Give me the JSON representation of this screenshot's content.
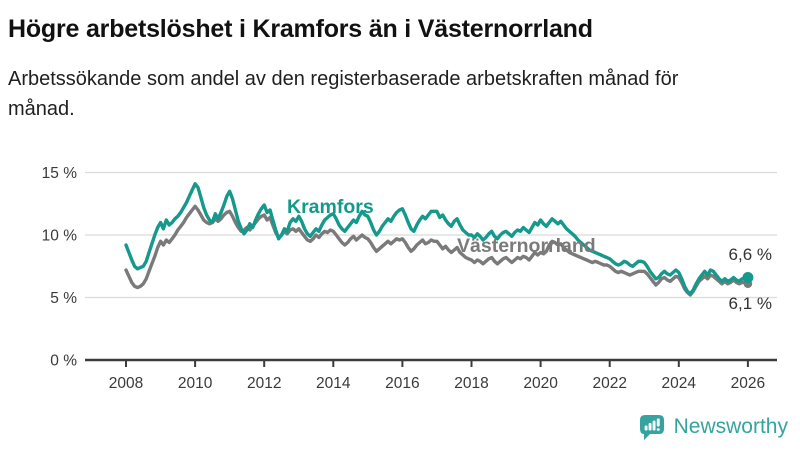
{
  "header": {
    "title": "Högre arbetslöshet i Kramfors än i Västernorrland",
    "subtitle": "Arbetssökande som andel av den registerbaserade arbetskraften månad för månad."
  },
  "footer": {
    "brand": "Newsworthy"
  },
  "colors": {
    "kramfors": "#14998C",
    "vasternorrland": "#7A7A7A",
    "annotation_text": "#333333",
    "axis": "#3C3C3C",
    "tick_text": "#3A3A3A",
    "grid": "#DBDBDB",
    "logo": "#35A4A0"
  },
  "chart_data": {
    "type": "line",
    "title": "Högre arbetslöshet i Kramfors än i Västernorrland",
    "subtitle": "Arbetssökande som andel av den registerbaserade arbetskraften månad för månad.",
    "xlabel": "",
    "ylabel": "",
    "unit": "%",
    "frequency": "monthly",
    "x_start": "2008-01",
    "x_end": "2026-01",
    "ylim": [
      0,
      15
    ],
    "grid": "horizontal",
    "legend_position": "inline-labels",
    "x_ticks": [
      "2008",
      "2010",
      "2012",
      "2014",
      "2016",
      "2018",
      "2020",
      "2022",
      "2024",
      "2026"
    ],
    "y_ticks": [
      {
        "value": 0,
        "label": "0 %"
      },
      {
        "value": 5,
        "label": "5 %"
      },
      {
        "value": 10,
        "label": "10 %"
      },
      {
        "value": 15,
        "label": "15 %"
      }
    ],
    "series": [
      {
        "name": "Kramfors",
        "color": "#14998C",
        "end_label": "6,6 %",
        "end_value": 6.6,
        "values": [
          9.2,
          8.6,
          8.0,
          7.5,
          7.3,
          7.4,
          7.5,
          7.9,
          8.6,
          9.3,
          10.0,
          10.6,
          11.0,
          10.5,
          11.2,
          10.8,
          11.0,
          11.3,
          11.5,
          11.8,
          12.2,
          12.6,
          13.1,
          13.6,
          14.1,
          13.8,
          13.0,
          12.2,
          11.6,
          11.2,
          11.0,
          11.7,
          11.3,
          11.8,
          12.4,
          13.1,
          13.5,
          12.9,
          12.0,
          11.1,
          10.5,
          10.1,
          10.4,
          10.9,
          10.6,
          11.2,
          11.7,
          12.1,
          12.4,
          11.8,
          12.0,
          11.2,
          10.4,
          9.7,
          10.0,
          10.5,
          10.3,
          11.0,
          11.3,
          11.1,
          11.5,
          11.1,
          10.5,
          10.1,
          9.9,
          10.2,
          10.5,
          10.3,
          10.8,
          11.2,
          11.4,
          11.6,
          11.7,
          11.3,
          10.8,
          10.5,
          10.3,
          10.6,
          10.9,
          11.2,
          11.0,
          11.5,
          11.9,
          11.6,
          11.5,
          11.0,
          10.4,
          10.0,
          10.3,
          10.7,
          11.0,
          11.3,
          11.1,
          11.5,
          11.8,
          12.0,
          12.1,
          11.6,
          11.0,
          10.5,
          10.3,
          10.8,
          11.2,
          11.5,
          11.3,
          11.6,
          11.9,
          11.9,
          11.9,
          11.4,
          11.6,
          11.2,
          10.9,
          10.7,
          11.1,
          11.3,
          10.8,
          10.4,
          10.2,
          10.0,
          10.0,
          9.8,
          10.1,
          9.9,
          9.6,
          9.8,
          10.1,
          10.3,
          9.9,
          9.7,
          10.0,
          10.2,
          10.3,
          10.1,
          9.9,
          10.2,
          10.4,
          10.3,
          10.6,
          10.4,
          10.2,
          10.6,
          11.0,
          10.8,
          11.2,
          10.9,
          10.7,
          11.0,
          11.3,
          11.1,
          10.9,
          11.1,
          10.8,
          10.5,
          10.3,
          10.1,
          9.9,
          9.6,
          9.4,
          9.2,
          9.0,
          8.8,
          8.7,
          8.6,
          8.5,
          8.4,
          8.3,
          8.2,
          8.1,
          7.9,
          7.7,
          7.6,
          7.7,
          7.9,
          7.8,
          7.6,
          7.5,
          7.7,
          7.9,
          7.9,
          7.8,
          7.5,
          7.1,
          6.8,
          6.5,
          6.6,
          6.9,
          7.1,
          6.9,
          6.8,
          7.0,
          7.2,
          7.0,
          6.5,
          5.9,
          5.5,
          5.3,
          5.6,
          6.1,
          6.5,
          6.8,
          7.1,
          6.8,
          7.2,
          7.1,
          6.8,
          6.5,
          6.3,
          6.5,
          6.3,
          6.4,
          6.6,
          6.4,
          6.3,
          6.5,
          6.5,
          6.6
        ]
      },
      {
        "name": "Västernorrland",
        "color": "#7A7A7A",
        "end_label": "6,1 %",
        "end_value": 6.1,
        "values": [
          7.2,
          6.7,
          6.2,
          5.9,
          5.8,
          5.9,
          6.1,
          6.5,
          7.1,
          7.7,
          8.3,
          9.0,
          9.5,
          9.2,
          9.6,
          9.4,
          9.7,
          10.0,
          10.4,
          10.7,
          11.0,
          11.4,
          11.7,
          12.0,
          12.3,
          12.0,
          11.6,
          11.2,
          11.0,
          10.9,
          11.0,
          11.3,
          11.1,
          11.3,
          11.6,
          11.8,
          11.9,
          11.5,
          11.0,
          10.6,
          10.3,
          10.4,
          10.6,
          10.4,
          10.7,
          11.0,
          11.3,
          11.5,
          11.6,
          11.2,
          11.4,
          10.8,
          10.2,
          9.8,
          10.0,
          10.3,
          10.1,
          10.4,
          10.5,
          10.3,
          10.5,
          10.2,
          9.9,
          9.6,
          9.5,
          9.7,
          10.0,
          9.8,
          10.1,
          10.3,
          10.2,
          10.4,
          10.3,
          10.0,
          9.7,
          9.4,
          9.2,
          9.4,
          9.7,
          9.9,
          9.6,
          9.8,
          10.0,
          9.8,
          9.7,
          9.4,
          9.0,
          8.7,
          8.9,
          9.1,
          9.3,
          9.5,
          9.3,
          9.5,
          9.7,
          9.6,
          9.7,
          9.4,
          9.0,
          8.7,
          8.9,
          9.2,
          9.4,
          9.6,
          9.3,
          9.4,
          9.6,
          9.5,
          9.5,
          9.2,
          8.9,
          9.1,
          8.8,
          8.6,
          8.8,
          9.0,
          8.6,
          8.4,
          8.2,
          8.1,
          8.0,
          7.8,
          8.0,
          7.9,
          7.7,
          7.9,
          8.1,
          8.2,
          7.9,
          7.7,
          7.9,
          8.1,
          8.2,
          8.0,
          7.8,
          8.0,
          8.2,
          8.1,
          8.3,
          8.2,
          8.0,
          8.3,
          8.6,
          8.4,
          8.6,
          8.5,
          8.7,
          9.2,
          9.5,
          9.4,
          9.2,
          9.3,
          9.0,
          8.8,
          8.6,
          8.5,
          8.4,
          8.3,
          8.2,
          8.1,
          8.0,
          7.9,
          7.8,
          7.9,
          7.8,
          7.7,
          7.6,
          7.6,
          7.5,
          7.3,
          7.1,
          7.0,
          7.1,
          7.0,
          6.9,
          6.8,
          6.9,
          7.0,
          7.1,
          7.1,
          7.1,
          6.9,
          6.6,
          6.3,
          6.0,
          6.2,
          6.5,
          6.6,
          6.4,
          6.3,
          6.5,
          6.7,
          6.6,
          6.2,
          5.7,
          5.4,
          5.2,
          5.5,
          5.9,
          6.3,
          6.5,
          6.7,
          6.5,
          6.8,
          6.7,
          6.5,
          6.3,
          6.1,
          6.3,
          6.1,
          6.2,
          6.4,
          6.2,
          6.1,
          6.2,
          6.2,
          6.1
        ]
      }
    ]
  }
}
